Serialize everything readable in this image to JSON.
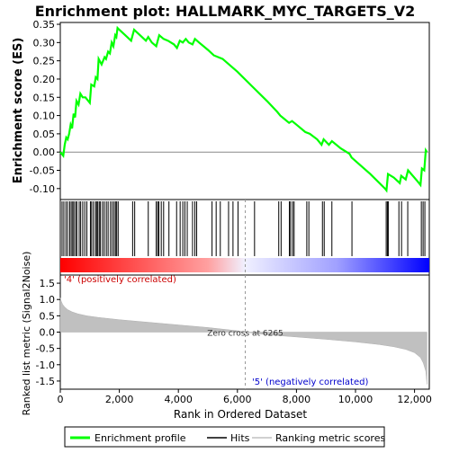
{
  "chart_data": {
    "type": "line",
    "title": "Enrichment plot: HALLMARK_MYC_TARGETS_V2",
    "top_panel": {
      "ylabel": "Enrichment score (ES)",
      "ylim": [
        -0.13,
        0.355
      ],
      "yticks": [
        "0.35",
        "0.30",
        "0.25",
        "0.20",
        "0.15",
        "0.10",
        "0.05",
        "0.00",
        "-0.05",
        "-0.10"
      ],
      "ytick_values": [
        0.35,
        0.3,
        0.25,
        0.2,
        0.15,
        0.1,
        0.05,
        0.0,
        -0.05,
        -0.1
      ],
      "series_color": "#00ff00",
      "es_profile": [
        [
          0,
          0.0
        ],
        [
          100,
          -0.01
        ],
        [
          150,
          0.02
        ],
        [
          200,
          0.04
        ],
        [
          250,
          0.035
        ],
        [
          300,
          0.05
        ],
        [
          350,
          0.075
        ],
        [
          400,
          0.065
        ],
        [
          450,
          0.105
        ],
        [
          500,
          0.095
        ],
        [
          550,
          0.14
        ],
        [
          620,
          0.13
        ],
        [
          680,
          0.16
        ],
        [
          760,
          0.15
        ],
        [
          850,
          0.15
        ],
        [
          1000,
          0.135
        ],
        [
          1050,
          0.185
        ],
        [
          1150,
          0.18
        ],
        [
          1200,
          0.205
        ],
        [
          1260,
          0.2
        ],
        [
          1300,
          0.255
        ],
        [
          1400,
          0.24
        ],
        [
          1500,
          0.26
        ],
        [
          1550,
          0.255
        ],
        [
          1620,
          0.275
        ],
        [
          1680,
          0.27
        ],
        [
          1740,
          0.3
        ],
        [
          1800,
          0.29
        ],
        [
          1860,
          0.32
        ],
        [
          1900,
          0.315
        ],
        [
          1940,
          0.34
        ],
        [
          2000,
          0.335
        ],
        [
          2200,
          0.32
        ],
        [
          2400,
          0.305
        ],
        [
          2500,
          0.335
        ],
        [
          2700,
          0.32
        ],
        [
          2900,
          0.305
        ],
        [
          2980,
          0.315
        ],
        [
          3100,
          0.3
        ],
        [
          3250,
          0.29
        ],
        [
          3350,
          0.32
        ],
        [
          3500,
          0.31
        ],
        [
          3650,
          0.305
        ],
        [
          3850,
          0.295
        ],
        [
          3950,
          0.285
        ],
        [
          4050,
          0.305
        ],
        [
          4150,
          0.3
        ],
        [
          4250,
          0.31
        ],
        [
          4350,
          0.3
        ],
        [
          4480,
          0.295
        ],
        [
          4560,
          0.31
        ],
        [
          4700,
          0.3
        ],
        [
          5000,
          0.28
        ],
        [
          5200,
          0.265
        ],
        [
          5500,
          0.255
        ],
        [
          6000,
          0.22
        ],
        [
          6500,
          0.18
        ],
        [
          7000,
          0.14
        ],
        [
          7350,
          0.11
        ],
        [
          7450,
          0.1
        ],
        [
          7600,
          0.09
        ],
        [
          7750,
          0.08
        ],
        [
          7850,
          0.085
        ],
        [
          8000,
          0.075
        ],
        [
          8300,
          0.055
        ],
        [
          8450,
          0.05
        ],
        [
          8700,
          0.035
        ],
        [
          8850,
          0.02
        ],
        [
          8920,
          0.035
        ],
        [
          9100,
          0.02
        ],
        [
          9200,
          0.03
        ],
        [
          9500,
          0.01
        ],
        [
          9800,
          -0.005
        ],
        [
          9870,
          -0.015
        ],
        [
          10500,
          -0.06
        ],
        [
          11000,
          -0.1
        ],
        [
          11050,
          -0.105
        ],
        [
          11100,
          -0.06
        ],
        [
          11300,
          -0.07
        ],
        [
          11500,
          -0.085
        ],
        [
          11550,
          -0.065
        ],
        [
          11700,
          -0.075
        ],
        [
          11780,
          -0.05
        ],
        [
          12100,
          -0.08
        ],
        [
          12200,
          -0.09
        ],
        [
          12250,
          -0.045
        ],
        [
          12330,
          -0.05
        ],
        [
          12380,
          0.005
        ],
        [
          12420,
          0.0
        ]
      ]
    },
    "hits_panel": {
      "hits": [
        60,
        120,
        190,
        250,
        320,
        370,
        420,
        460,
        520,
        560,
        640,
        690,
        760,
        830,
        900,
        1020,
        1060,
        1120,
        1190,
        1230,
        1270,
        1320,
        1360,
        1430,
        1490,
        1560,
        1620,
        1700,
        1760,
        1820,
        1870,
        1910,
        1960,
        2450,
        2520,
        2980,
        3250,
        3300,
        3340,
        3420,
        3500,
        3680,
        3940,
        4060,
        4150,
        4220,
        4300,
        4480,
        4560,
        4620,
        5140,
        5280,
        5420,
        5700,
        5850,
        6020,
        6580,
        7400,
        7480,
        7760,
        7800,
        7870,
        7920,
        8350,
        8420,
        8880,
        8940,
        9200,
        9880,
        11040,
        11080,
        11110,
        11470,
        11560,
        11770,
        12230,
        12290,
        12350
      ],
      "gradient_colors": [
        "#ff0000",
        "#ffb0b0",
        "#e8e8ff",
        "#0000ff"
      ]
    },
    "bottom_panel": {
      "ylabel": "Ranked list metric (Signal2Noise)",
      "xlabel": "Rank in Ordered Dataset",
      "ylim": [
        -1.75,
        1.75
      ],
      "yticks": [
        "1.5",
        "1.0",
        "0.5",
        "0.0",
        "-0.5",
        "-1.0",
        "-1.5"
      ],
      "ytick_values": [
        1.5,
        1.0,
        0.5,
        0.0,
        -0.5,
        -1.0,
        -1.5
      ],
      "xlim": [
        0,
        12500
      ],
      "xticks": [
        "0",
        "2,000",
        "4,000",
        "6,000",
        "8,000",
        "10,000",
        "12,000"
      ],
      "xtick_values": [
        0,
        2000,
        4000,
        6000,
        8000,
        10000,
        12000
      ],
      "zero_cross": 6265,
      "zero_cross_label": "Zero cross at 6265",
      "pos_label": "'4' (positively correlated)",
      "neg_label": "'5' (negatively correlated)",
      "metric_curve": [
        [
          0,
          1.05
        ],
        [
          30,
          0.95
        ],
        [
          80,
          0.85
        ],
        [
          150,
          0.77
        ],
        [
          250,
          0.69
        ],
        [
          400,
          0.62
        ],
        [
          600,
          0.56
        ],
        [
          900,
          0.5
        ],
        [
          1300,
          0.45
        ],
        [
          2000,
          0.38
        ],
        [
          3000,
          0.3
        ],
        [
          4000,
          0.22
        ],
        [
          5000,
          0.14
        ],
        [
          6000,
          0.04
        ],
        [
          6265,
          0.0
        ],
        [
          7000,
          -0.08
        ],
        [
          8000,
          -0.15
        ],
        [
          9000,
          -0.22
        ],
        [
          10000,
          -0.3
        ],
        [
          10800,
          -0.38
        ],
        [
          11300,
          -0.45
        ],
        [
          11700,
          -0.53
        ],
        [
          12000,
          -0.63
        ],
        [
          12200,
          -0.78
        ],
        [
          12300,
          -0.95
        ],
        [
          12380,
          -1.2
        ],
        [
          12420,
          -1.6
        ]
      ]
    },
    "legend": {
      "placement": "bottom",
      "items": [
        {
          "label": "Enrichment profile",
          "color": "#00ff00"
        },
        {
          "label": "Hits",
          "color": "#000000"
        },
        {
          "label": "Ranking metric scores",
          "color": "#c0c0c0"
        }
      ]
    }
  }
}
